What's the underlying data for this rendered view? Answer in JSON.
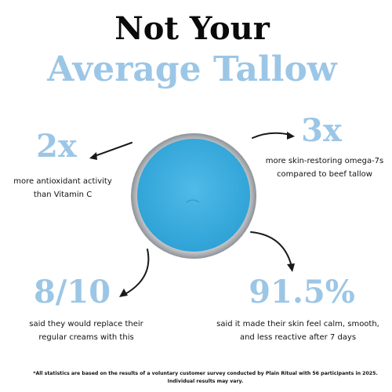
{
  "header": {
    "title_line1": "Not Your",
    "title_line2": "Average Tallow"
  },
  "stats": [
    {
      "value": "2x",
      "description": [
        "more antioxidant activity",
        "than Vitamin C"
      ]
    },
    {
      "value": "3x",
      "description": [
        "more skin-restoring omega-7s",
        "compared to beef tallow"
      ]
    },
    {
      "value": "8/10",
      "description": [
        "said they would replace their",
        "regular creams with this"
      ]
    },
    {
      "value": "91.5%",
      "description": [
        "said it made their skin feel calm, smooth,",
        "and less reactive after 7 days"
      ]
    }
  ],
  "footnote": [
    "*All statistics are based on the results of a voluntary customer survey conducted by Plain Ritual with 56 participants in 2025.",
    "Individual results may vary."
  ]
}
